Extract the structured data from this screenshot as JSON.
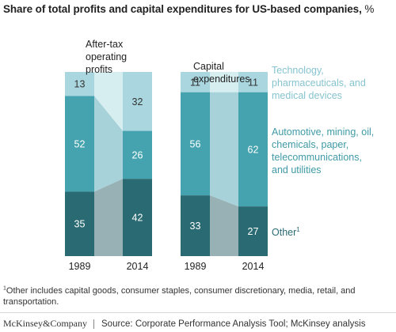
{
  "title": {
    "text": "Share of total profits and capital expenditures for US-based companies,",
    "unit": "%"
  },
  "colors": {
    "tech": "#a9d6df",
    "tech_middle": "#d7eef1",
    "auto": "#44a3ae",
    "auto_middle": "#a7d2d9",
    "other": "#2a6a72",
    "other_middle": "#97b1b5",
    "legend_tech": "#86c4cf",
    "legend_auto": "#3f9aa6",
    "legend_other": "#2a6a72"
  },
  "chart_data": [
    {
      "type": "bar",
      "subtitle": "After-tax operating profits",
      "categories": [
        "1989",
        "2014"
      ],
      "series": [
        {
          "name": "Other",
          "values": [
            35,
            42
          ]
        },
        {
          "name": "Automotive, mining, oil, chemicals, paper, telecommunications, and utilities",
          "values": [
            52,
            26
          ]
        },
        {
          "name": "Technology, pharmaceuticals, and medical devices",
          "values": [
            13,
            32
          ]
        }
      ],
      "ylim": [
        0,
        100
      ]
    },
    {
      "type": "bar",
      "subtitle": "Capital expenditures",
      "categories": [
        "1989",
        "2014"
      ],
      "series": [
        {
          "name": "Other",
          "values": [
            33,
            27
          ]
        },
        {
          "name": "Automotive, mining, oil, chemicals, paper, telecommunications, and utilities",
          "values": [
            56,
            62
          ]
        },
        {
          "name": "Technology, pharmaceuticals, and medical devices",
          "values": [
            11,
            11
          ]
        }
      ],
      "ylim": [
        0,
        100
      ]
    }
  ],
  "legend": {
    "tech": [
      "Technology,",
      "pharmaceuticals, and",
      "medical devices"
    ],
    "auto": [
      "Automotive, mining, oil,",
      "chemicals, paper,",
      "telecommunications,",
      "and utilities"
    ],
    "other": "Other",
    "other_sup": "1"
  },
  "footnote": {
    "sup": "1",
    "text": "Other includes capital goods, consumer staples, consumer discretionary, media, retail, and transportation."
  },
  "footer": {
    "brand": "McKinsey&Company",
    "source": "Source: Corporate Performance Analysis Tool; McKinsey analysis"
  }
}
